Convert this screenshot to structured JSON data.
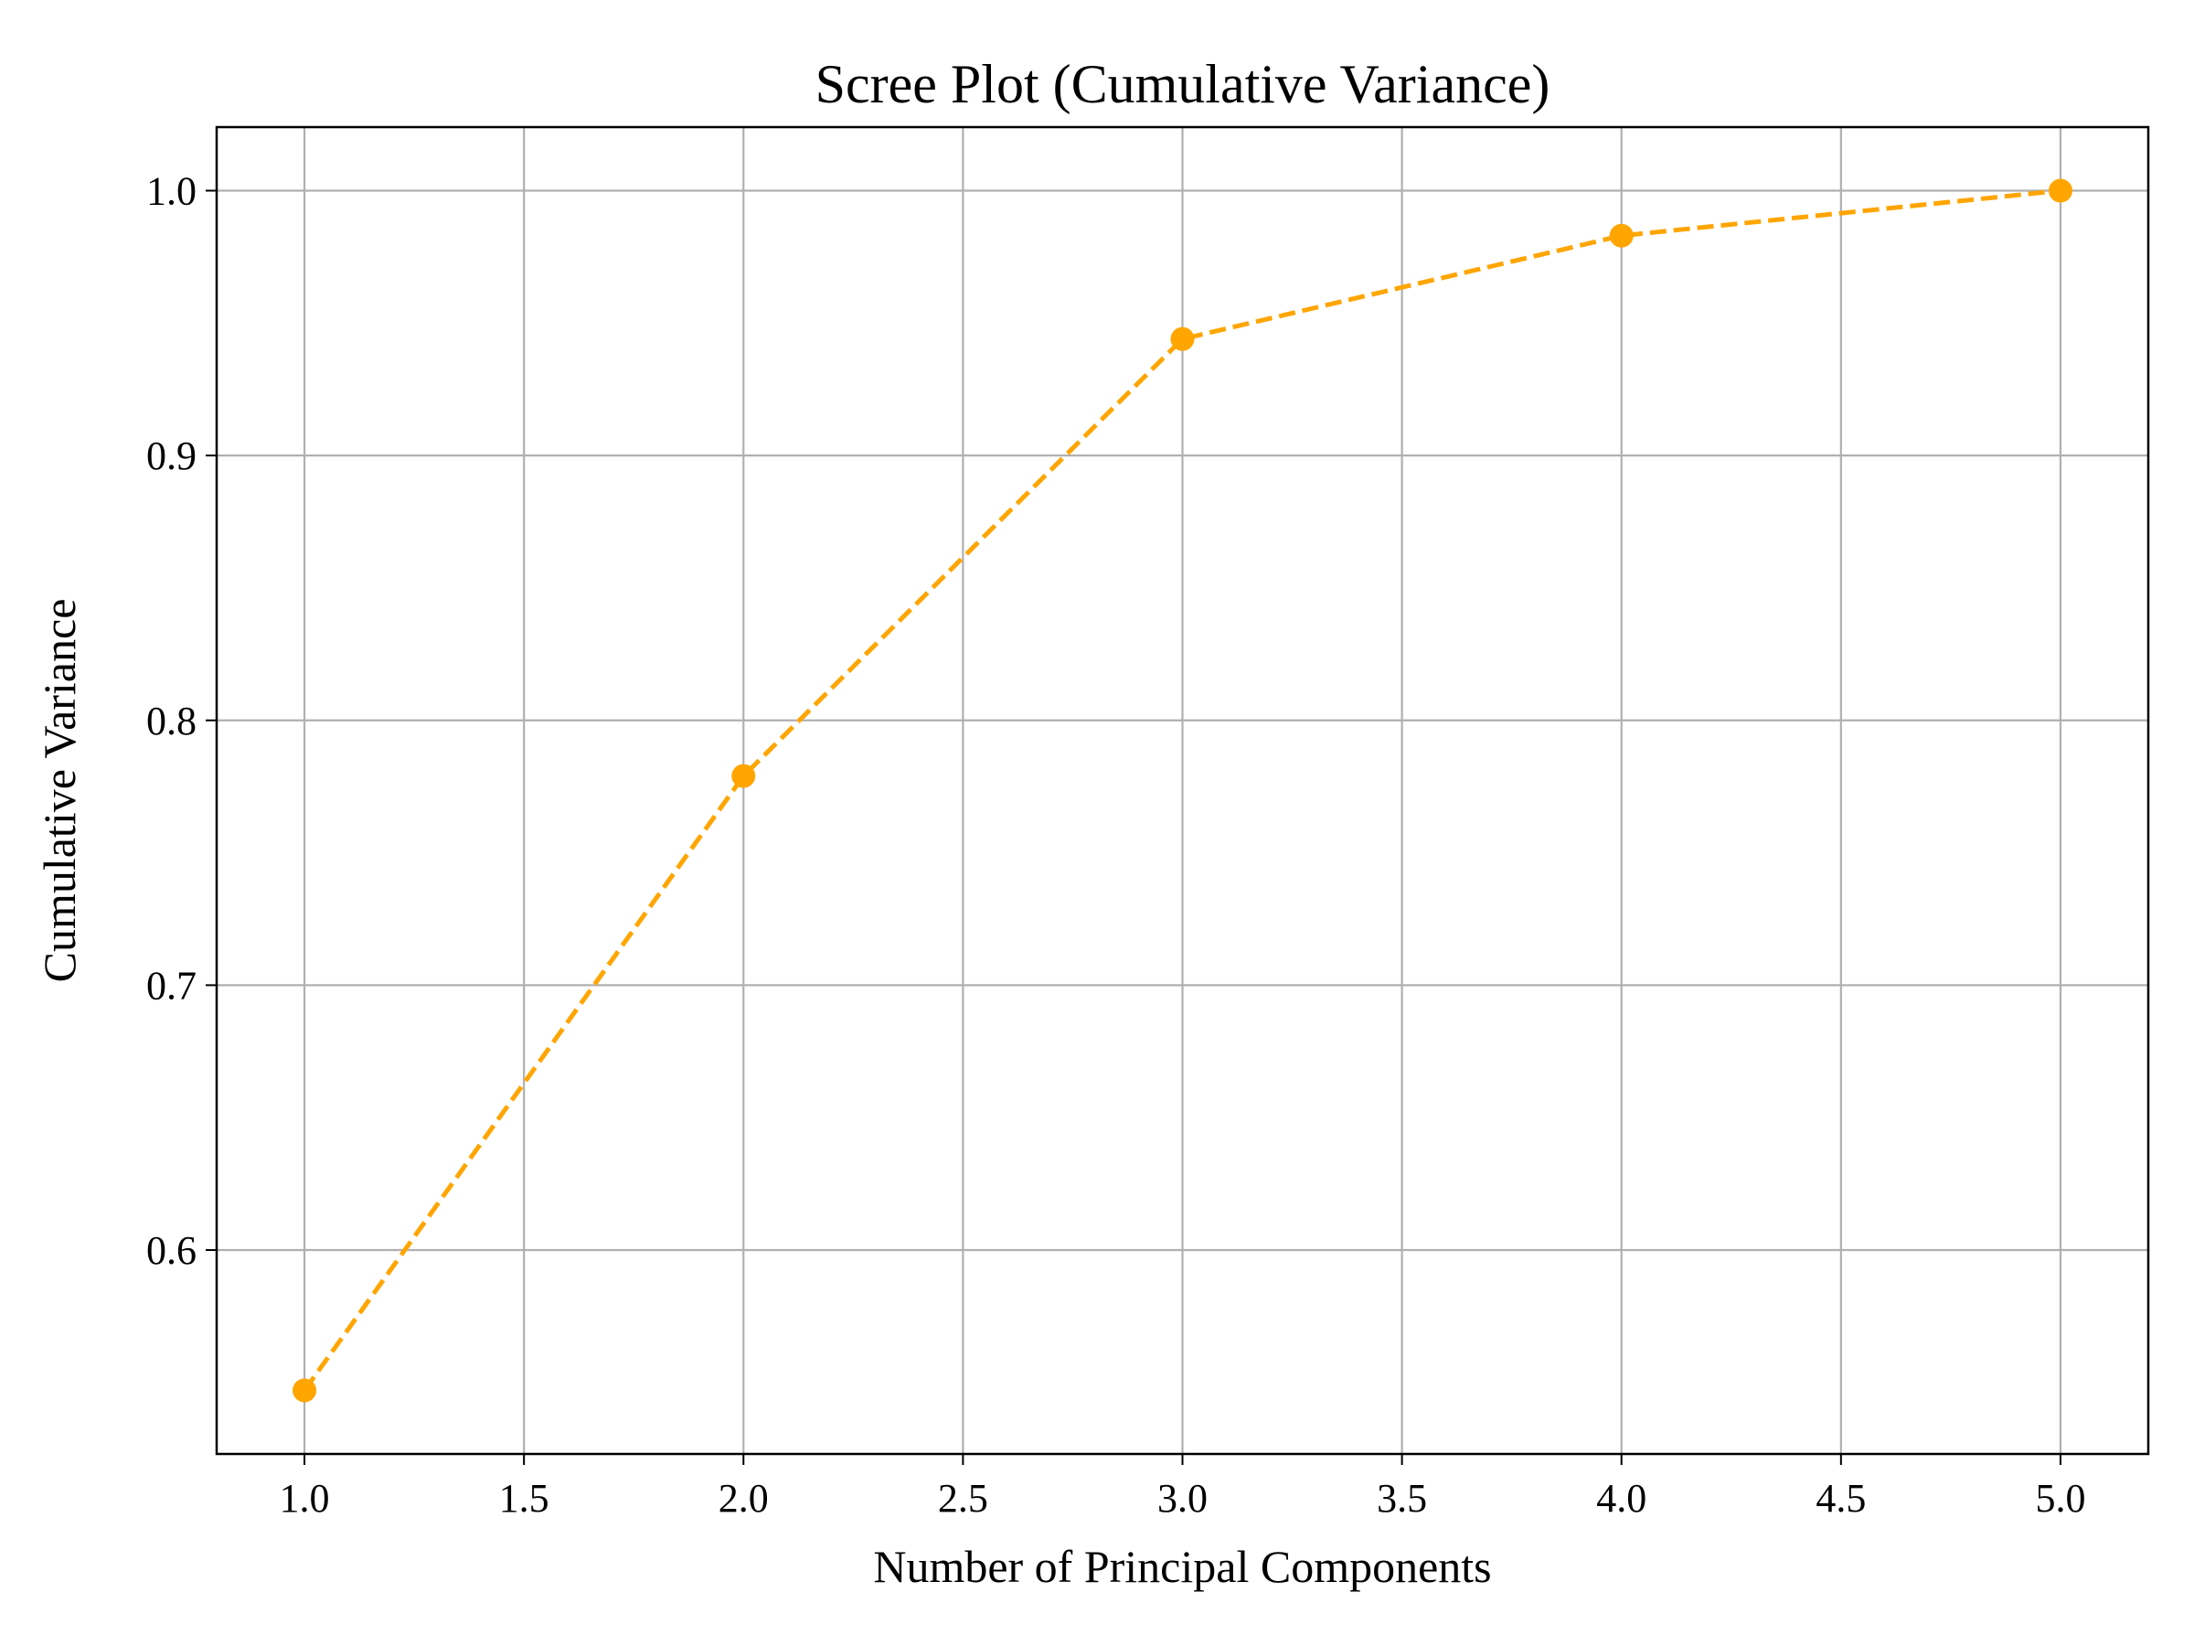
{
  "chart_data": {
    "type": "line",
    "title": "Scree Plot (Cumulative Variance)",
    "xlabel": "Number of Principal Components",
    "ylabel": "Cumulative Variance",
    "xlim": [
      0.8,
      5.2
    ],
    "ylim": [
      0.523,
      1.024
    ],
    "x_ticks": [
      1.0,
      1.5,
      2.0,
      2.5,
      3.0,
      3.5,
      4.0,
      4.5,
      5.0
    ],
    "x_tick_labels": [
      "1.0",
      "1.5",
      "2.0",
      "2.5",
      "3.0",
      "3.5",
      "4.0",
      "4.5",
      "5.0"
    ],
    "y_ticks": [
      0.6,
      0.7,
      0.8,
      0.9,
      1.0
    ],
    "y_tick_labels": [
      "0.6",
      "0.7",
      "0.8",
      "0.9",
      "1.0"
    ],
    "grid": true,
    "series": [
      {
        "x": [
          1,
          2,
          3,
          4,
          5
        ],
        "values": [
          0.547,
          0.779,
          0.944,
          0.983,
          1.0
        ],
        "color": "#FFA500",
        "line_style": "dashed",
        "marker": "circle"
      }
    ]
  }
}
